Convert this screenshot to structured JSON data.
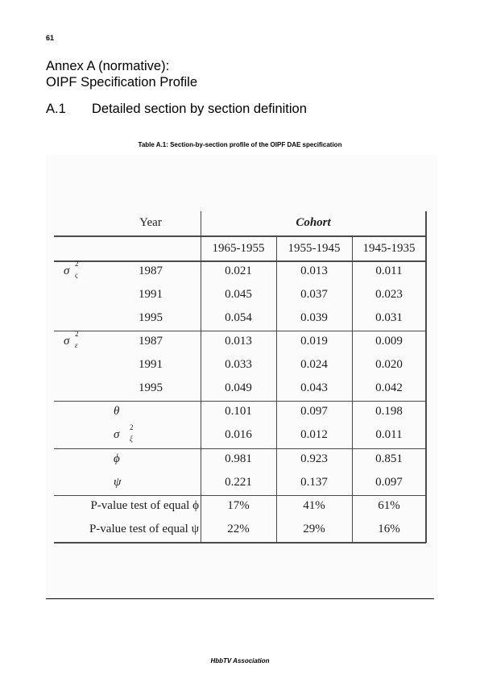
{
  "page_number": "61",
  "annex_line1": "Annex A (normative):",
  "annex_line2": "OIPF Specification Profile",
  "section_number": "A.1",
  "section_title": "Detailed section by section definition",
  "caption": "Table A.1: Section-by-section profile of the OIPF DAE specification",
  "table": {
    "year_header": "Year",
    "cohort_header": "Cohort",
    "columns": [
      "1965-1955",
      "1955-1945",
      "1945-1935"
    ],
    "rows": [
      {
        "sym": "σ",
        "sup": "2",
        "sub": "ς",
        "year": "1987",
        "values": [
          "0.021",
          "0.013",
          "0.011"
        ]
      },
      {
        "sym": "",
        "sup": "",
        "sub": "",
        "year": "1991",
        "values": [
          "0.045",
          "0.037",
          "0.023"
        ]
      },
      {
        "sym": "",
        "sup": "",
        "sub": "",
        "year": "1995",
        "values": [
          "0.054",
          "0.039",
          "0.031"
        ]
      },
      {
        "sym": "σ",
        "sup": "2",
        "sub": "ε",
        "year": "1987",
        "values": [
          "0.013",
          "0.019",
          "0.009"
        ]
      },
      {
        "sym": "",
        "sup": "",
        "sub": "",
        "year": "1991",
        "values": [
          "0.033",
          "0.024",
          "0.020"
        ]
      },
      {
        "sym": "",
        "sup": "",
        "sub": "",
        "year": "1995",
        "values": [
          "0.049",
          "0.043",
          "0.042"
        ]
      },
      {
        "label": "θ",
        "values": [
          "0.101",
          "0.097",
          "0.198"
        ]
      },
      {
        "label": "σ",
        "sup": "2",
        "sub": "ξ",
        "values": [
          "0.016",
          "0.012",
          "0.011"
        ]
      },
      {
        "label": "ϕ",
        "values": [
          "0.981",
          "0.923",
          "0.851"
        ]
      },
      {
        "label": "ψ",
        "values": [
          "0.221",
          "0.137",
          "0.097"
        ]
      },
      {
        "label": "P-value test of equal ϕ",
        "values": [
          "17%",
          "41%",
          "61%"
        ]
      },
      {
        "label": "P-value test of equal ψ",
        "values": [
          "22%",
          "29%",
          "16%"
        ]
      }
    ]
  },
  "footer": "HbbTV Association"
}
